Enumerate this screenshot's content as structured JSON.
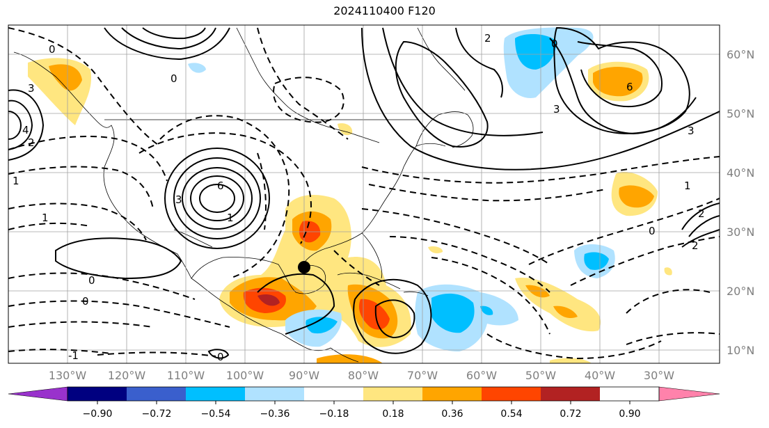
{
  "title": "2024110400 F120",
  "map": {
    "lon_labels": [
      "130°W",
      "120°W",
      "110°W",
      "100°W",
      "90°W",
      "80°W",
      "70°W",
      "60°W",
      "50°W",
      "40°W",
      "30°W"
    ],
    "lat_labels": [
      "60°N",
      "50°N",
      "40°N",
      "30°N",
      "20°N",
      "10°N"
    ],
    "contour_labels": [
      "0",
      "3",
      "4",
      "0",
      "1",
      "2",
      "1",
      "0",
      "6",
      "3",
      "1",
      "0",
      "0",
      "-1",
      "6",
      "3",
      "2",
      "0",
      "1",
      "3",
      "2",
      "0",
      "2"
    ],
    "marker": {
      "lon": -90,
      "lat": 24,
      "color": "#000000"
    }
  },
  "colorbar": {
    "colors": [
      "#9932cc",
      "#000080",
      "#3a5fcd",
      "#00bfff",
      "#b0e2ff",
      "#ffffff",
      "#ffe680",
      "#ffa500",
      "#ff4500",
      "#b22222",
      "#ff82ab"
    ],
    "tick_labels": [
      "−0.90",
      "−0.72",
      "−0.54",
      "−0.36",
      "−0.18",
      "0.18",
      "0.36",
      "0.54",
      "0.72",
      "0.90"
    ]
  }
}
